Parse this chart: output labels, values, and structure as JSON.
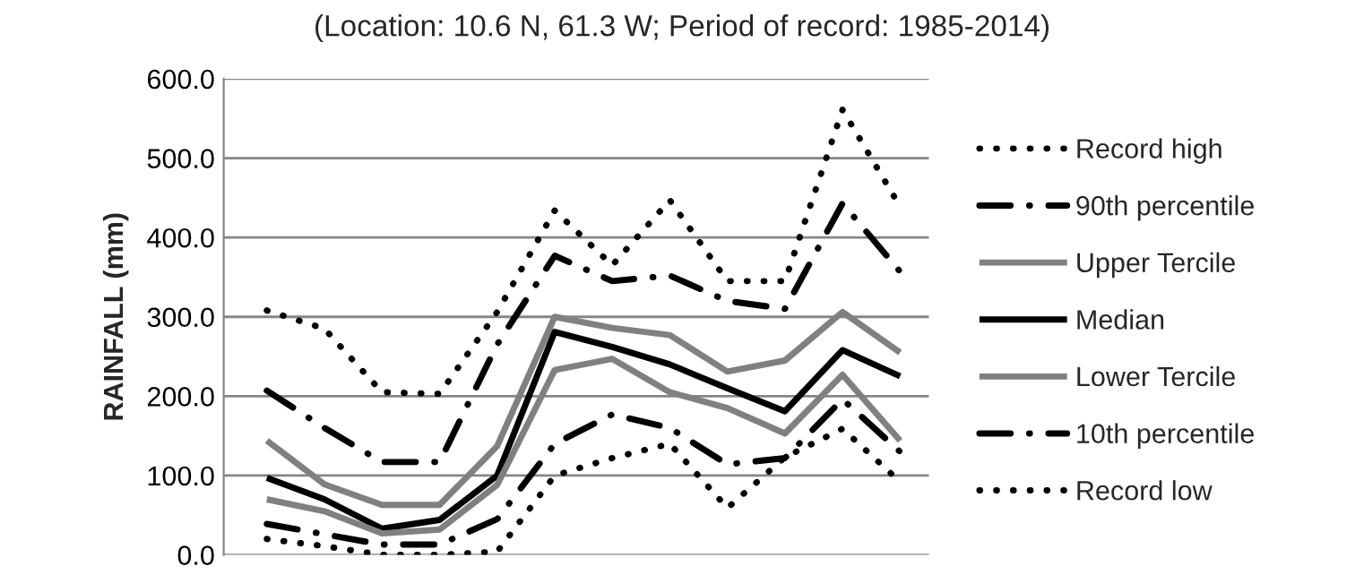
{
  "chart_data": {
    "type": "line",
    "title": "(Location: 10.6 N, 61.3 W; Period of record: 1985-2014)",
    "ylabel": "RAINFALL (mm)",
    "categories": [
      null,
      null,
      null,
      null,
      null,
      null,
      null,
      null,
      null,
      null,
      null,
      null
    ],
    "series": [
      {
        "name": "Record high",
        "color": "#000000",
        "line_style": "dotted",
        "values": [
          308,
          285,
          205,
          203,
          306,
          434,
          365,
          447,
          345,
          345,
          561,
          439
        ]
      },
      {
        "name": "90th percentile",
        "color": "#000000",
        "line_style": "dashdot",
        "values": [
          207,
          160,
          117,
          117,
          265,
          377,
          345,
          352,
          320,
          310,
          443,
          357
        ]
      },
      {
        "name": "Upper Tercile",
        "color": "#808080",
        "line_style": "solid",
        "values": [
          144,
          89,
          63,
          63,
          137,
          300,
          286,
          277,
          231,
          245,
          306,
          255
        ]
      },
      {
        "name": "Median",
        "color": "#000000",
        "line_style": "solid",
        "values": [
          97,
          70,
          33,
          44,
          100,
          281,
          262,
          240,
          210,
          181,
          258,
          225
        ]
      },
      {
        "name": "Lower Tercile",
        "color": "#808080",
        "line_style": "solid",
        "values": [
          70,
          55,
          27,
          32,
          88,
          233,
          247,
          205,
          185,
          153,
          227,
          144
        ]
      },
      {
        "name": "10th percentile",
        "color": "#000000",
        "line_style": "dashdot",
        "values": [
          39,
          26,
          13,
          13,
          45,
          140,
          177,
          160,
          114,
          122,
          196,
          130
        ]
      },
      {
        "name": "Record low",
        "color": "#000000",
        "line_style": "dotted",
        "values": [
          20,
          11,
          0,
          0,
          4,
          100,
          122,
          140,
          59,
          123,
          159,
          92
        ]
      }
    ],
    "ylim": [
      0,
      600
    ],
    "yticks": [
      {
        "value": 0,
        "label": "0.0"
      },
      {
        "value": 100,
        "label": "100.0"
      },
      {
        "value": 200,
        "label": "200.0"
      },
      {
        "value": 300,
        "label": "300.0"
      },
      {
        "value": 400,
        "label": "400.0"
      },
      {
        "value": 500,
        "label": "500.0"
      },
      {
        "value": 600,
        "label": "600.0"
      }
    ],
    "tick_labels": "y",
    "grid": "y",
    "legend": "right"
  }
}
